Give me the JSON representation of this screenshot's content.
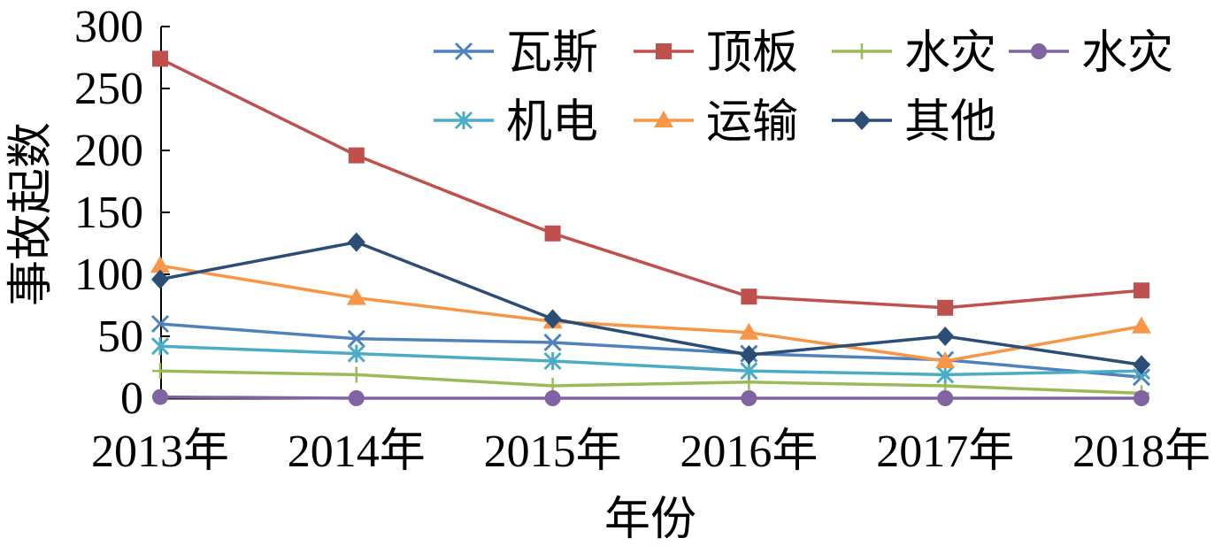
{
  "chart_data": {
    "type": "line",
    "xlabel": "年份",
    "ylabel": "事故起数",
    "categories": [
      "2013年",
      "2014年",
      "2015年",
      "2016年",
      "2017年",
      "2018年"
    ],
    "ylim": [
      0,
      300
    ],
    "yticks": [
      0,
      50,
      100,
      150,
      200,
      250,
      300
    ],
    "grid": false,
    "legend": "top-right",
    "series": [
      {
        "name": "瓦斯",
        "values": [
          60,
          48,
          45,
          36,
          31,
          17
        ],
        "color": "#4F81BD",
        "marker": "x"
      },
      {
        "name": "顶板",
        "values": [
          274,
          196,
          133,
          82,
          73,
          87
        ],
        "color": "#C0504D",
        "marker": "square"
      },
      {
        "name": "水灾",
        "values": [
          22,
          19,
          10,
          13,
          10,
          4
        ],
        "color": "#9BBB59",
        "marker": "plus"
      },
      {
        "name": "水灾",
        "values": [
          1,
          0,
          0,
          0,
          0,
          0
        ],
        "color": "#8064A2",
        "marker": "circle"
      },
      {
        "name": "机电",
        "values": [
          42,
          36,
          30,
          22,
          19,
          22
        ],
        "color": "#4BACC6",
        "marker": "asterisk"
      },
      {
        "name": "运输",
        "values": [
          107,
          81,
          62,
          53,
          30,
          58
        ],
        "color": "#F79646",
        "marker": "triangle"
      },
      {
        "name": "其他",
        "values": [
          96,
          126,
          64,
          35,
          50,
          27
        ],
        "color": "#2C4D75",
        "marker": "diamond"
      }
    ]
  }
}
